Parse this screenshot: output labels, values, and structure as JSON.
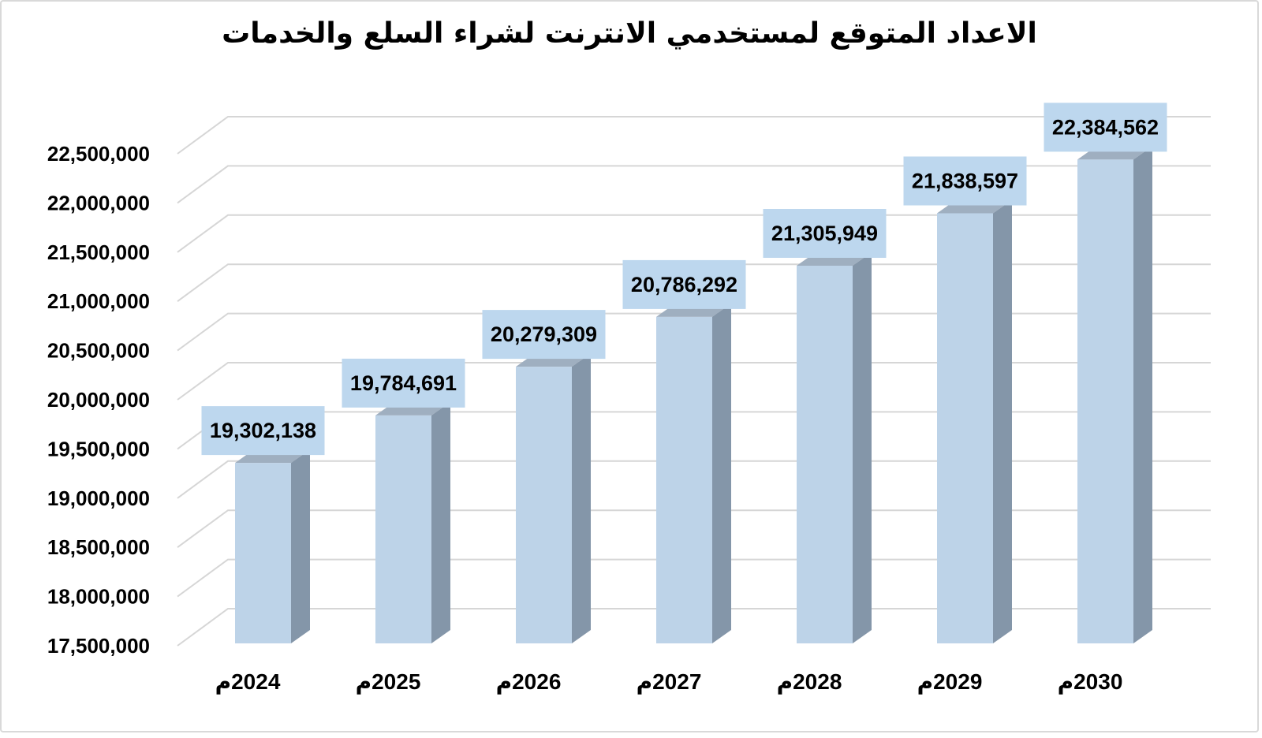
{
  "title": "الاعداد المتوقع لمستخدمي الانترنت لشراء السلع والخدمات",
  "chart_data": {
    "type": "bar",
    "subtype": "3d-column",
    "title": "الاعداد المتوقع لمستخدمي الانترنت لشراء السلع والخدمات",
    "categories": [
      "2024م",
      "2025م",
      "2026م",
      "2027م",
      "2028م",
      "2029م",
      "2030م"
    ],
    "values": [
      19302138,
      19784691,
      20279309,
      20786292,
      21305949,
      21838597,
      22384562
    ],
    "data_labels": [
      "19,302,138",
      "19,784,691",
      "20,279,309",
      "20,786,292",
      "21,305,949",
      "21,838,597",
      "22,384,562"
    ],
    "xlabel": "",
    "ylabel": "",
    "y_axis": {
      "min": 17500000,
      "max": 22500000,
      "step": 500000,
      "tick_labels": [
        "17,500,000",
        "18,000,000",
        "18,500,000",
        "19,000,000",
        "19,500,000",
        "20,000,000",
        "20,500,000",
        "21,000,000",
        "21,500,000",
        "22,000,000",
        "22,500,000"
      ]
    },
    "grid": true,
    "legend": false,
    "colors": {
      "bar_front": "#bdd3e8",
      "bar_side": "#8496a9",
      "bar_top": "#9fafc0",
      "label_box": "#bdd7ee",
      "gridline": "#d6d6d6",
      "text": "#000000",
      "background": "#ffffff",
      "border": "#d9d9d9"
    }
  }
}
